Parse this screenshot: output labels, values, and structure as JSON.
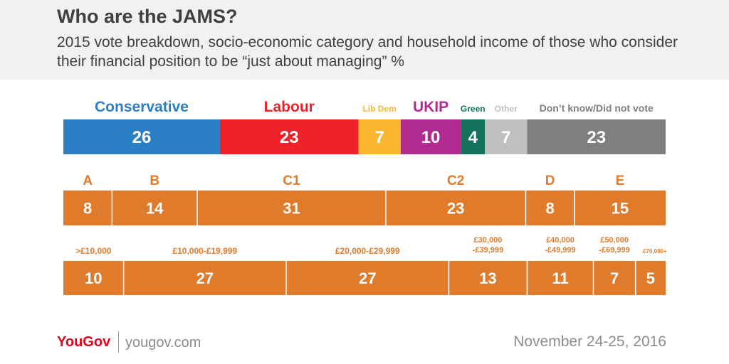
{
  "header": {
    "title": "Who are the JAMS?",
    "subtitle": "2015 vote breakdown, socio-economic category and household income of those who consider their financial position to be “just about managing” %"
  },
  "chart_data": [
    {
      "type": "bar",
      "stacked": true,
      "orientation": "horizontal",
      "row": "vote",
      "segments": [
        {
          "name": "Conservative",
          "value": 26,
          "color": "#2b7fc4"
        },
        {
          "name": "Labour",
          "value": 23,
          "color": "#ee2228"
        },
        {
          "name": "Lib Dem",
          "value": 7,
          "color": "#fbb731"
        },
        {
          "name": "UKIP",
          "value": 10,
          "color": "#b02a90"
        },
        {
          "name": "Green",
          "value": 4,
          "color": "#13715e"
        },
        {
          "name": "Other",
          "value": 7,
          "color": "#bfbfbf"
        },
        {
          "name": "Don’t know/Did not vote",
          "value": 23,
          "color": "#7f7f7f"
        }
      ]
    },
    {
      "type": "bar",
      "stacked": true,
      "orientation": "horizontal",
      "row": "socio-economic",
      "color": "#e07b2c",
      "segments": [
        {
          "name": "A",
          "value": 8
        },
        {
          "name": "B",
          "value": 14
        },
        {
          "name": "C1",
          "value": 31
        },
        {
          "name": "C2",
          "value": 23
        },
        {
          "name": "D",
          "value": 8
        },
        {
          "name": "E",
          "value": 15
        }
      ]
    },
    {
      "type": "bar",
      "stacked": true,
      "orientation": "horizontal",
      "row": "income",
      "color": "#e07b2c",
      "segments": [
        {
          "name": ">£10,000",
          "value": 10
        },
        {
          "name": "£10,000-£19,999",
          "value": 27
        },
        {
          "name": "£20,000-£29,999",
          "value": 27
        },
        {
          "name": "£30,000\n-£39,999",
          "value": 13
        },
        {
          "name": "£40,000\n-£49,999",
          "value": 11
        },
        {
          "name": "£50,000\n-£69,999",
          "value": 7
        },
        {
          "name": "£70,000+",
          "value": 5
        }
      ]
    }
  ],
  "footer": {
    "brand": "YouGov",
    "url": "yougov.com",
    "date": "November 24-25, 2016"
  }
}
